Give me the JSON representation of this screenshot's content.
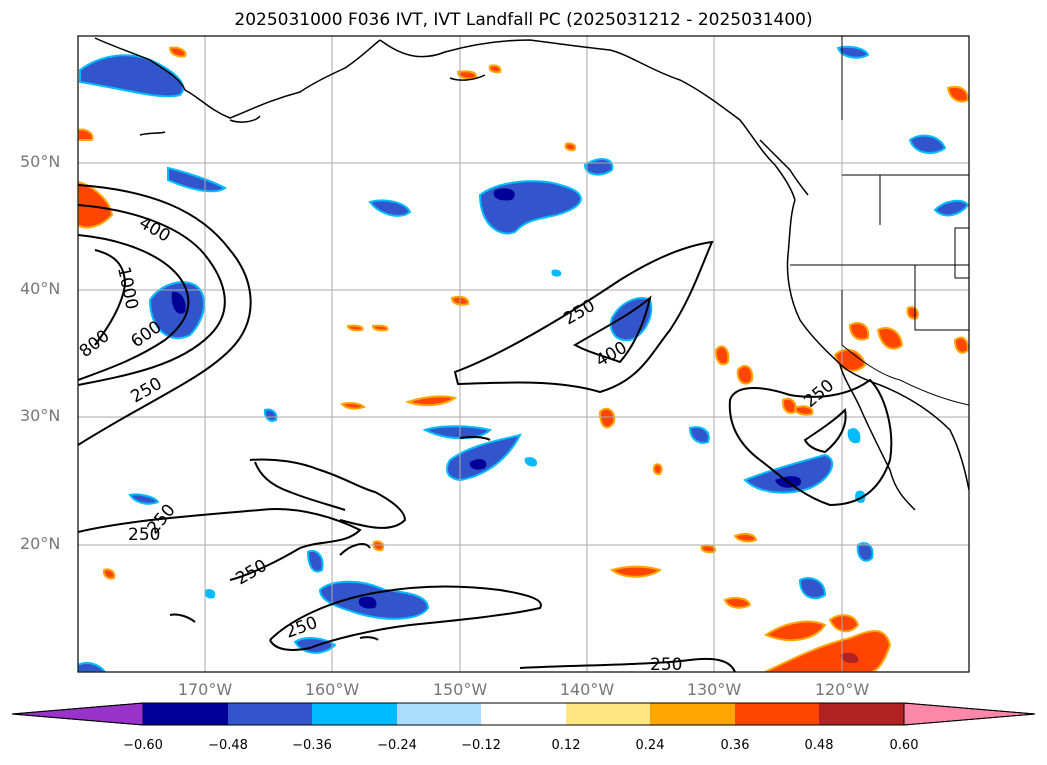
{
  "title": "2025031000 F036 IVT, IVT Landfall PC (2025031212 - 2025031400)",
  "lat_labels": [
    "50°N",
    "40°N",
    "30°N",
    "20°N"
  ],
  "lon_labels": [
    "170°W",
    "160°W",
    "150°W",
    "140°W",
    "130°W",
    "120°W"
  ],
  "contour_labels": [
    "400",
    "1000",
    "800",
    "600",
    "250",
    "250",
    "400",
    "250",
    "250",
    "250",
    "250",
    "250",
    "250"
  ],
  "colorbar": {
    "ticks": [
      "−0.60",
      "−0.48",
      "−0.36",
      "−0.24",
      "−0.12",
      "0.12",
      "0.24",
      "0.36",
      "0.48",
      "0.60"
    ],
    "colors": [
      "#9933cc",
      "#000099",
      "#3355cc",
      "#00bbff",
      "#aaddff",
      "#ffffff",
      "#ffe680",
      "#ffa500",
      "#ff4500",
      "#b22222",
      "#ff88aa"
    ]
  },
  "colors": {
    "neg_light": "#aaddff",
    "neg_mid": "#00bbff",
    "neg_strong": "#3355cc",
    "neg_darkest": "#000099",
    "pos_light": "#ffe680",
    "pos_mid": "#ffa500",
    "pos_strong": "#ff4500",
    "pos_darkest": "#b22222"
  }
}
